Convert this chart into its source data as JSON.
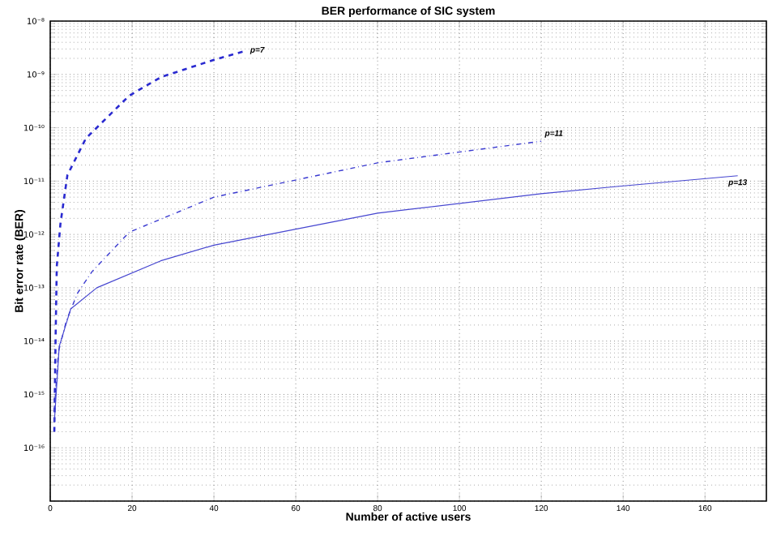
{
  "chart_data": {
    "type": "line",
    "title": "BER performance of SIC system",
    "xlabel": "Number of active users",
    "ylabel": "Bit error rate (BER)",
    "log": "y",
    "grid": true,
    "marker": "none",
    "legend": false,
    "xlim": [
      0,
      175
    ],
    "xticks": [
      0,
      20,
      40,
      60,
      80,
      100,
      120,
      140,
      160
    ],
    "ylim": [
      1e-17,
      1e-08
    ],
    "yticks": [
      {
        "value": 1e-17,
        "label": null
      },
      {
        "value": 1e-16,
        "label": "10⁻¹⁶"
      },
      {
        "value": 1e-15,
        "label": "10⁻¹⁵"
      },
      {
        "value": 1e-14,
        "label": "10⁻¹⁴"
      },
      {
        "value": 1e-13,
        "label": "10⁻¹³"
      },
      {
        "value": 1e-12,
        "label": "10⁻¹²"
      },
      {
        "value": 1e-11,
        "label": "10⁻¹¹"
      },
      {
        "value": 1e-10,
        "label": "10⁻¹⁰"
      },
      {
        "value": 1e-09,
        "label": "10⁻⁹"
      },
      {
        "value": 1e-08,
        "label": "10⁻⁸"
      }
    ],
    "series": [
      {
        "name": "p=7",
        "color": "#2a2ad0",
        "line_style": "dashed",
        "x": [
          1,
          1.3,
          1.6,
          2.5,
          4.2,
          8.7,
          19.3,
          27.2,
          40.2,
          48
        ],
        "values": [
          2e-16,
          1e-14,
          2.5e-13,
          1.6e-12,
          1.3e-11,
          6.3e-11,
          4e-10,
          9e-10,
          1.9e-09,
          2.8e-09
        ]
      },
      {
        "name": "p=11",
        "color": "#3a3ad0",
        "line_style": "dotted",
        "x": [
          1,
          2,
          4,
          6.7,
          10.2,
          19.3,
          40,
          80,
          120
        ],
        "values": [
          5e-16,
          6.3e-15,
          2.5e-14,
          8e-14,
          2e-13,
          1.1e-12,
          5e-12,
          2.2e-11,
          5.6e-11
        ]
      },
      {
        "name": "p=13",
        "color": "#4646d0",
        "line_style": "solid",
        "x": [
          1,
          2.2,
          5,
          11.4,
          27,
          40,
          80,
          120,
          139,
          168
        ],
        "values": [
          3e-16,
          8e-15,
          4e-14,
          1e-13,
          3.2e-13,
          6.3e-13,
          2.5e-12,
          5.8e-12,
          8e-12,
          1.26e-11
        ]
      }
    ]
  }
}
